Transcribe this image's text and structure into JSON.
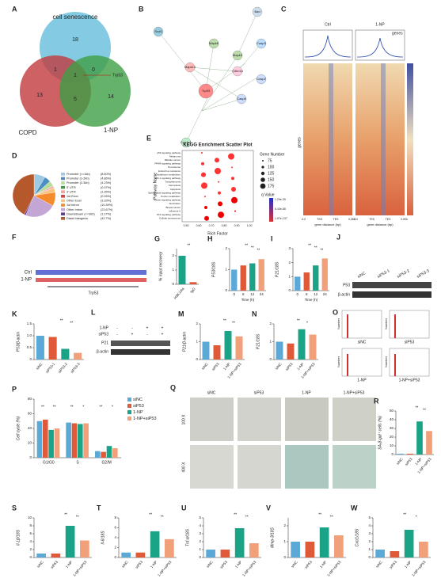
{
  "panels": {
    "A": {
      "letter": "A",
      "sets": [
        "cell senescence",
        "COPD",
        "1-NP"
      ],
      "counts": [
        "18",
        "1",
        "0",
        "13",
        "1",
        "5",
        "14"
      ],
      "gene": "Trp53"
    },
    "B": {
      "letter": "B",
      "nodes": [
        "Sod1",
        "Bad",
        "Mapk8",
        "Mapk3",
        "Mapk14",
        "Cdkn1a",
        "Trp53",
        "Casp3",
        "Casp8",
        "Casp2",
        "Cyp1a1"
      ]
    },
    "C": {
      "letter": "C",
      "samples": [
        "Ctrl",
        "1-NP"
      ],
      "legend": "genes",
      "ylabel": "genes",
      "xticks": [
        "-3.0",
        "TSS",
        "TES",
        "3.0Kb"
      ],
      "xlabel": "gene distance (bp)"
    },
    "E": {
      "letter": "E",
      "title": "KEGG Enrichment Scatter Plot",
      "ylabel": "Pathway Name",
      "xlabel": "Rich Factor",
      "pathways": [
        "p53 signaling pathway",
        "Melanoma",
        "Bladder cancer",
        "PPAR signaling pathway",
        "Peroxisome",
        "Endocrine resistance",
        "Glutathione metabolism",
        "HIF-1 signaling pathway",
        "Toxoplasmosis",
        "Ferroptosis",
        "Apoptosis",
        "Sphingolipid signaling pathway",
        "Purine metabolism",
        "Insulin signaling pathway",
        "Alcoholism",
        "Breast cancer",
        "Influenza A",
        "Wnt signaling pathway",
        "Cellular senescence"
      ],
      "size_title": "Gene Number",
      "sizes": [
        "75",
        "100",
        "125",
        "150",
        "175"
      ],
      "color_title": "q Value",
      "qvalues": [
        "1.29e-39",
        "6.43e-68",
        "1.97e-137"
      ],
      "xticks": [
        "0.50",
        "0.60",
        "0.70",
        "0.80",
        "0.90",
        "1.00"
      ]
    },
    "F": {
      "letter": "F",
      "tracks": [
        "Ctrl",
        "1-NP"
      ],
      "gene": "Trp53"
    },
    "J": {
      "letter": "J",
      "lanes": [
        "siNC",
        "siP53-1",
        "siP53-2",
        "siP53-3"
      ],
      "proteins": [
        "P53",
        "β-actin"
      ]
    },
    "L": {
      "letter": "L",
      "rows": [
        "1-NP",
        "siP53"
      ],
      "signs": [
        "-",
        "-",
        "+",
        "+",
        "-",
        "+",
        "-",
        "+"
      ],
      "proteins": [
        "P21",
        "β-actin"
      ]
    },
    "O": {
      "letter": "O",
      "ylabel": "Number",
      "conditions": [
        "siNC",
        "siP53",
        "1-NP",
        "1-NP+siP53"
      ]
    },
    "Q": {
      "letter": "Q",
      "columns": [
        "siNC",
        "siP53",
        "1-NP",
        "1-NP+siP53"
      ],
      "rows": [
        "100 X",
        "400 X"
      ]
    }
  },
  "chart_data": [
    {
      "type": "pie",
      "label": "D",
      "categories": [
        "Promoter (<=1kb)",
        "Promoter (1-2kb)",
        "Promoter (2-3kb)",
        "5' UTR",
        "3' UTR",
        "1st Exon",
        "Other Exon",
        "1st Intron",
        "Other Intron",
        "Downstream (<=300)",
        "Distal Intergenic"
      ],
      "values": [
        8.6,
        4.86,
        4.23,
        0.07,
        1.35,
        0.26,
        3.33,
        10.39,
        23.67,
        1.17,
        42.7
      ],
      "value_labels": [
        "(8.60%)",
        "(4.86%)",
        "(4.23%)",
        "(0.07%)",
        "(1.35%)",
        "(0.26%)",
        "(3.33%)",
        "(10.39%)",
        "(23.67%)",
        "(1.17%)",
        "(42.7%)"
      ],
      "colors": [
        "#9ec9e2",
        "#4b8ec2",
        "#b6dd9b",
        "#3f9f45",
        "#f7a2a0",
        "#e0403e",
        "#fbc27b",
        "#f58b2b",
        "#c3a6d4",
        "#6a3d9a",
        "#b5582c"
      ]
    },
    {
      "type": "bar",
      "label": "G",
      "ylabel": "% input recovery",
      "categories": [
        "H3K14la",
        "IgG"
      ],
      "values": [
        2.0,
        0.15
      ],
      "colors": [
        "#1aa386",
        "#e05a3a"
      ],
      "ylim": [
        0,
        2.5
      ],
      "yticks": [
        0,
        1,
        2
      ],
      "annotations": [
        "**"
      ]
    },
    {
      "type": "bar",
      "label": "H",
      "ylabel": "P53/18S",
      "xlabel": "Time (h)",
      "categories": [
        "0",
        "6",
        "12",
        "24"
      ],
      "values": [
        1.0,
        1.2,
        1.3,
        1.5
      ],
      "colors": [
        "#5aa9d6",
        "#e05a3a",
        "#1aa386",
        "#f2a07a"
      ],
      "ylim": [
        0,
        2
      ],
      "yticks": [
        0,
        1,
        2
      ],
      "annotations": [
        "**",
        "**",
        "**"
      ],
      "flat": true
    },
    {
      "type": "bar",
      "label": "I",
      "ylabel": "P21/18S",
      "xlabel": "Time (h)",
      "categories": [
        "0",
        "6",
        "12",
        "24"
      ],
      "values": [
        1.0,
        1.3,
        1.8,
        2.3
      ],
      "colors": [
        "#5aa9d6",
        "#e05a3a",
        "#1aa386",
        "#f2a07a"
      ],
      "ylim": [
        0,
        3
      ],
      "yticks": [
        0,
        1,
        2,
        3
      ],
      "annotations": [
        "**",
        "**",
        "**"
      ],
      "flat": true
    },
    {
      "type": "bar",
      "label": "K",
      "ylabel": "P53/β-actin",
      "categories": [
        "siNC",
        "siP53-1",
        "siP53-2",
        "siP53-3"
      ],
      "values": [
        1.0,
        0.95,
        0.45,
        0.28
      ],
      "colors": [
        "#5aa9d6",
        "#e05a3a",
        "#1aa386",
        "#f2a07a"
      ],
      "ylim": [
        0,
        1.5
      ],
      "yticks": [
        0,
        0.5,
        {
          "value": 1,
          "label": "1.0"
        },
        1.5
      ],
      "annotations": [
        "**",
        "**"
      ]
    },
    {
      "type": "bar",
      "label": "M",
      "ylabel": "P21/β-actin",
      "categories": [
        "siNC",
        "siP53",
        "1-NP",
        "1-NP+siP53"
      ],
      "values": [
        1.0,
        0.8,
        1.6,
        1.3
      ],
      "colors": [
        "#5aa9d6",
        "#e05a3a",
        "#1aa386",
        "#f2a07a"
      ],
      "ylim": [
        0,
        2
      ],
      "yticks": [
        0,
        1,
        2
      ],
      "annotations": [
        "**",
        "**"
      ]
    },
    {
      "type": "bar",
      "label": "N",
      "ylabel": "P21/18S",
      "categories": [
        "siNC",
        "siP53",
        "1-NP",
        "1-NP+siP53"
      ],
      "values": [
        1.0,
        0.9,
        1.7,
        1.4
      ],
      "colors": [
        "#5aa9d6",
        "#e05a3a",
        "#1aa386",
        "#f2a07a"
      ],
      "ylim": [
        0,
        2
      ],
      "yticks": [
        0,
        1,
        2
      ],
      "annotations": [
        "**",
        "*"
      ]
    },
    {
      "type": "groupbar",
      "label": "P",
      "ylabel": "Cell cycle (%)",
      "categories": [
        "G1/G0",
        "S",
        "G2/M"
      ],
      "series": [
        {
          "name": "siNC",
          "color": "#5aa9d6",
          "values": [
            50,
            48,
            9
          ]
        },
        {
          "name": "siP53",
          "color": "#e05a3a",
          "values": [
            52,
            47,
            8
          ]
        },
        {
          "name": "1-NP",
          "color": "#1aa386",
          "values": [
            38,
            46,
            16
          ]
        },
        {
          "name": "1-NP+siP53",
          "color": "#f2a07a",
          "values": [
            40,
            47,
            13
          ]
        }
      ],
      "ylim": [
        0,
        80
      ],
      "yticks": [
        0,
        20,
        40,
        60,
        80
      ],
      "annotations": [
        "**",
        "**",
        "**",
        "*",
        "**",
        "*"
      ]
    },
    {
      "type": "bar",
      "label": "R",
      "ylabel": "SA-β-gal⁺ cells (%)",
      "categories": [
        "siNC",
        "siP53",
        "1-NP",
        "1-NP+siP53"
      ],
      "values": [
        1,
        1,
        38,
        27
      ],
      "colors": [
        "#5aa9d6",
        "#e05a3a",
        "#1aa386",
        "#f2a07a"
      ],
      "ylim": [
        0,
        50
      ],
      "yticks": [
        0,
        10,
        20,
        30,
        40,
        50
      ],
      "annotations": [
        "**",
        "**"
      ]
    },
    {
      "type": "bar",
      "label": "S",
      "ylabel": "Il-1β/18S",
      "categories": [
        "siNC",
        "siP53",
        "1-NP",
        "1-NP+siP53"
      ],
      "values": [
        1,
        1,
        8,
        4.3
      ],
      "colors": [
        "#5aa9d6",
        "#e05a3a",
        "#1aa386",
        "#f2a07a"
      ],
      "ylim": [
        0,
        10
      ],
      "yticks": [
        0,
        2,
        4,
        6,
        8,
        10
      ],
      "annotations": [
        "**",
        "**"
      ]
    },
    {
      "type": "bar",
      "label": "T",
      "ylabel": "Il-6/18S",
      "categories": [
        "siNC",
        "siP53",
        "1-NP",
        "1-NP+siP53"
      ],
      "values": [
        1,
        1,
        5.3,
        3.7
      ],
      "colors": [
        "#5aa9d6",
        "#e05a3a",
        "#1aa386",
        "#f2a07a"
      ],
      "ylim": [
        0,
        8
      ],
      "yticks": [
        0,
        2,
        4,
        6,
        8
      ],
      "annotations": [
        "**",
        "**"
      ]
    },
    {
      "type": "bar",
      "label": "U",
      "ylabel": "Tnf-α/18S",
      "categories": [
        "siNC",
        "siP53",
        "1-NP",
        "1-NP+siP53"
      ],
      "values": [
        1,
        1,
        3.7,
        1.8
      ],
      "colors": [
        "#5aa9d6",
        "#e05a3a",
        "#1aa386",
        "#f2a07a"
      ],
      "ylim": [
        0,
        5
      ],
      "yticks": [
        0,
        1,
        2,
        3,
        4,
        5
      ],
      "annotations": [
        "**",
        "**"
      ]
    },
    {
      "type": "bar",
      "label": "V",
      "ylabel": "Mmp-3/18S",
      "categories": [
        "siNC",
        "siP53",
        "1-NP",
        "1-NP+siP53"
      ],
      "values": [
        1,
        1,
        1.9,
        1.4
      ],
      "colors": [
        "#5aa9d6",
        "#e05a3a",
        "#1aa386",
        "#f2a07a"
      ],
      "ylim": [
        0,
        2.5
      ],
      "yticks": [
        0,
        1,
        2
      ],
      "annotations": [
        "**",
        "**"
      ]
    },
    {
      "type": "bar",
      "label": "W",
      "ylabel": "Cxcl1/18S",
      "categories": [
        "siNC",
        "siP53",
        "1-NP",
        "1-NP+siP53"
      ],
      "values": [
        1,
        0.8,
        3.5,
        2
      ],
      "colors": [
        "#5aa9d6",
        "#e05a3a",
        "#1aa386",
        "#f2a07a"
      ],
      "ylim": [
        0,
        5
      ],
      "yticks": [
        0,
        1,
        2,
        3,
        4,
        5
      ],
      "annotations": [
        "**",
        "*"
      ]
    }
  ]
}
